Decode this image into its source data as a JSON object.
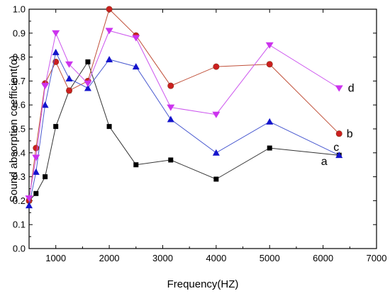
{
  "chart_data": {
    "type": "line",
    "title": "",
    "xlabel": "Frequency(HZ)",
    "ylabel": "Sound absorption coefficient(α)",
    "xlim": [
      500,
      7000
    ],
    "ylim": [
      0.0,
      1.0
    ],
    "xticks": [
      1000,
      2000,
      3000,
      4000,
      5000,
      6000,
      7000
    ],
    "yticks": [
      0.0,
      0.1,
      0.2,
      0.3,
      0.4,
      0.5,
      0.6,
      0.7,
      0.8,
      0.9,
      1.0
    ],
    "grid": false,
    "legend": "none (series letters printed at right end of each line)",
    "x": [
      500,
      630,
      800,
      1000,
      1250,
      1600,
      2000,
      2500,
      3150,
      4000,
      5000,
      6300
    ],
    "series": [
      {
        "name": "a",
        "color": "#000000",
        "line_color": "#333333",
        "marker": "square",
        "values": [
          0.2,
          0.23,
          0.3,
          0.51,
          0.66,
          0.78,
          0.51,
          0.35,
          0.37,
          0.29,
          0.42,
          0.39
        ]
      },
      {
        "name": "b",
        "color": "#cc1f1f",
        "line_color": "#c0503a",
        "marker": "circle",
        "values": [
          0.2,
          0.42,
          0.69,
          0.78,
          0.66,
          0.7,
          1.0,
          0.89,
          0.68,
          0.76,
          0.77,
          0.48
        ]
      },
      {
        "name": "c",
        "color": "#1414cc",
        "line_color": "#4a5ad0",
        "marker": "triangle-up",
        "values": [
          0.18,
          0.32,
          0.6,
          0.82,
          0.71,
          0.67,
          0.79,
          0.76,
          0.54,
          0.4,
          0.53,
          0.39
        ]
      },
      {
        "name": "d",
        "color": "#cc33ee",
        "line_color": "#cc55ee",
        "marker": "triangle-down",
        "values": [
          0.21,
          0.38,
          0.68,
          0.9,
          0.77,
          0.69,
          0.91,
          0.88,
          0.59,
          0.56,
          0.85,
          0.67
        ]
      }
    ]
  }
}
